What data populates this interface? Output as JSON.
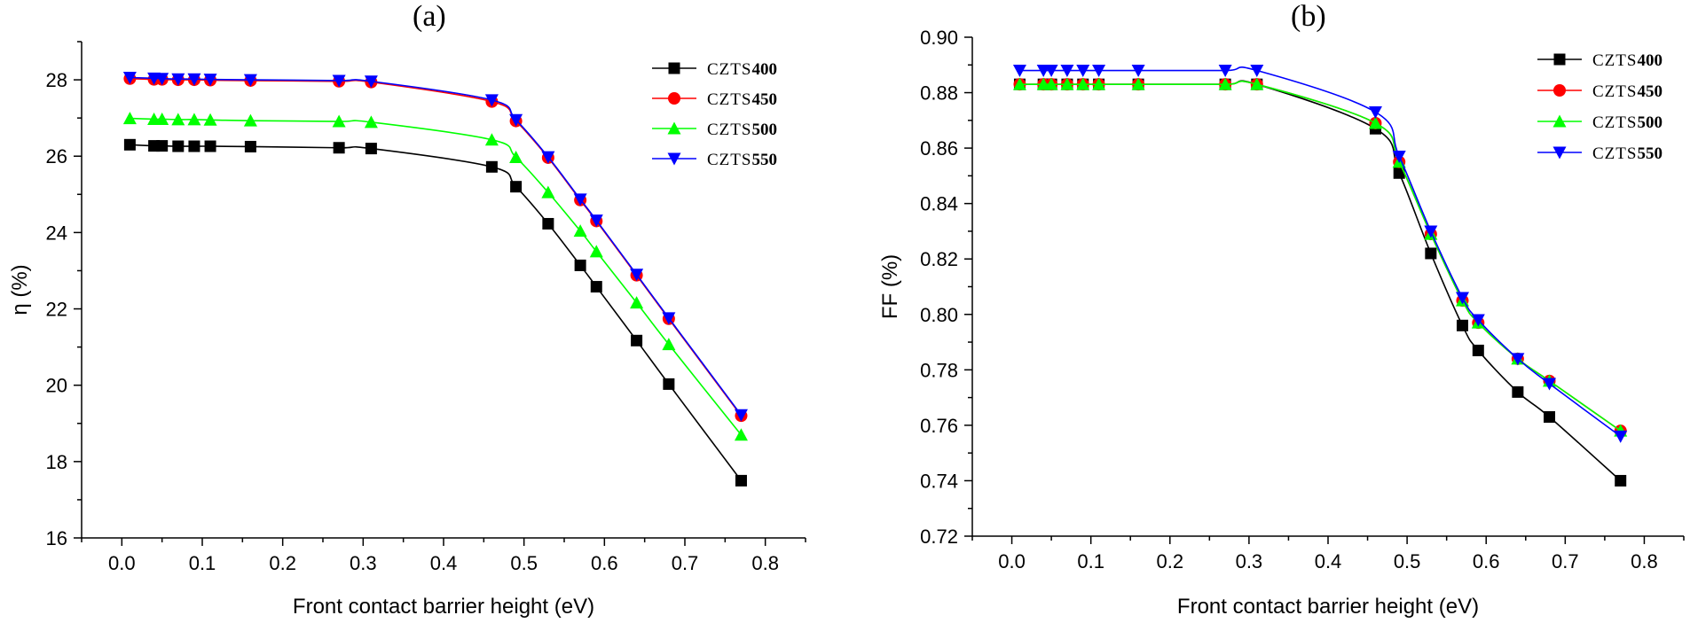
{
  "chart_data": [
    {
      "type": "line",
      "panel_label": "(a)",
      "xlabel": "Front contact barrier height (eV)",
      "ylabel": "η (%)",
      "xlim": [
        -0.05,
        0.85
      ],
      "ylim": [
        16,
        29
      ],
      "xticks": [
        0.0,
        0.1,
        0.2,
        0.3,
        0.4,
        0.5,
        0.6,
        0.7,
        0.8
      ],
      "xtick_labels": [
        "0.0",
        "0.1",
        "0.2",
        "0.3",
        "0.4",
        "0.5",
        "0.6",
        "0.7",
        "0.8"
      ],
      "yticks": [
        16,
        18,
        20,
        22,
        24,
        26,
        28
      ],
      "ytick_labels": [
        "16",
        "18",
        "20",
        "22",
        "24",
        "26",
        "28"
      ],
      "legend_position": "top-right",
      "x": [
        0.01,
        0.04,
        0.05,
        0.07,
        0.09,
        0.11,
        0.16,
        0.27,
        0.31,
        0.46,
        0.49,
        0.53,
        0.57,
        0.59,
        0.64,
        0.68,
        0.77
      ],
      "series": [
        {
          "name": "CZTS400",
          "name_prefix": "CZTS",
          "name_suffix": "400",
          "color": "#000000",
          "marker": "square",
          "values": [
            26.3,
            26.27,
            26.27,
            26.26,
            26.26,
            26.26,
            26.25,
            26.22,
            26.2,
            25.72,
            25.2,
            24.23,
            23.14,
            22.58,
            21.17,
            20.03,
            17.5
          ]
        },
        {
          "name": "CZTS450",
          "name_prefix": "CZTS",
          "name_suffix": "450",
          "color": "#ff0000",
          "marker": "circle",
          "values": [
            28.03,
            28.01,
            28.01,
            28.0,
            28.0,
            27.99,
            27.98,
            27.96,
            27.94,
            27.43,
            26.92,
            25.96,
            24.85,
            24.3,
            22.88,
            21.74,
            19.2
          ]
        },
        {
          "name": "CZTS500",
          "name_prefix": "CZTS",
          "name_suffix": "500",
          "color": "#00ff00",
          "marker": "triangle-up",
          "values": [
            26.99,
            26.97,
            26.97,
            26.96,
            26.96,
            26.95,
            26.93,
            26.91,
            26.89,
            26.43,
            25.97,
            25.05,
            24.04,
            23.5,
            22.16,
            21.07,
            18.7
          ]
        },
        {
          "name": "CZTS550",
          "name_prefix": "CZTS",
          "name_suffix": "550",
          "color": "#0000ff",
          "marker": "triangle-down",
          "values": [
            28.06,
            28.04,
            28.03,
            28.02,
            28.02,
            28.01,
            28.0,
            27.98,
            27.96,
            27.47,
            26.95,
            25.98,
            24.87,
            24.32,
            22.9,
            21.76,
            19.22
          ]
        }
      ]
    },
    {
      "type": "line",
      "panel_label": "(b)",
      "xlabel": "Front contact barrier height (eV)",
      "ylabel": "FF (%)",
      "xlim": [
        -0.05,
        0.85
      ],
      "ylim": [
        0.72,
        0.9
      ],
      "xticks": [
        0.0,
        0.1,
        0.2,
        0.3,
        0.4,
        0.5,
        0.6,
        0.7,
        0.8
      ],
      "xtick_labels": [
        "0.0",
        "0.1",
        "0.2",
        "0.3",
        "0.4",
        "0.5",
        "0.6",
        "0.7",
        "0.8"
      ],
      "yticks": [
        0.72,
        0.74,
        0.76,
        0.78,
        0.8,
        0.82,
        0.84,
        0.86,
        0.88,
        0.9
      ],
      "ytick_labels": [
        "0.72",
        "0.74",
        "0.76",
        "0.78",
        "0.80",
        "0.82",
        "0.84",
        "0.86",
        "0.88",
        "0.90"
      ],
      "legend_position": "top-right",
      "x": [
        0.01,
        0.04,
        0.05,
        0.07,
        0.09,
        0.11,
        0.16,
        0.27,
        0.31,
        0.46,
        0.49,
        0.53,
        0.57,
        0.59,
        0.64,
        0.68,
        0.77
      ],
      "series": [
        {
          "name": "CZTS400",
          "name_prefix": "CZTS",
          "name_suffix": "400",
          "color": "#000000",
          "marker": "square",
          "values": [
            0.883,
            0.883,
            0.883,
            0.883,
            0.883,
            0.883,
            0.883,
            0.883,
            0.883,
            0.867,
            0.851,
            0.822,
            0.796,
            0.787,
            0.772,
            0.763,
            0.74
          ]
        },
        {
          "name": "CZTS450",
          "name_prefix": "CZTS",
          "name_suffix": "450",
          "color": "#ff0000",
          "marker": "circle",
          "values": [
            0.883,
            0.883,
            0.883,
            0.883,
            0.883,
            0.883,
            0.883,
            0.883,
            0.883,
            0.869,
            0.855,
            0.829,
            0.805,
            0.797,
            0.784,
            0.776,
            0.758
          ]
        },
        {
          "name": "CZTS500",
          "name_prefix": "CZTS",
          "name_suffix": "500",
          "color": "#00ff00",
          "marker": "triangle-up",
          "values": [
            0.883,
            0.883,
            0.883,
            0.883,
            0.883,
            0.883,
            0.883,
            0.883,
            0.883,
            0.869,
            0.855,
            0.829,
            0.805,
            0.797,
            0.784,
            0.776,
            0.758
          ]
        },
        {
          "name": "CZTS550",
          "name_prefix": "CZTS",
          "name_suffix": "550",
          "color": "#0000ff",
          "marker": "triangle-down",
          "values": [
            0.888,
            0.888,
            0.888,
            0.888,
            0.888,
            0.888,
            0.888,
            0.888,
            0.888,
            0.873,
            0.857,
            0.83,
            0.806,
            0.798,
            0.784,
            0.775,
            0.756
          ]
        }
      ]
    }
  ]
}
